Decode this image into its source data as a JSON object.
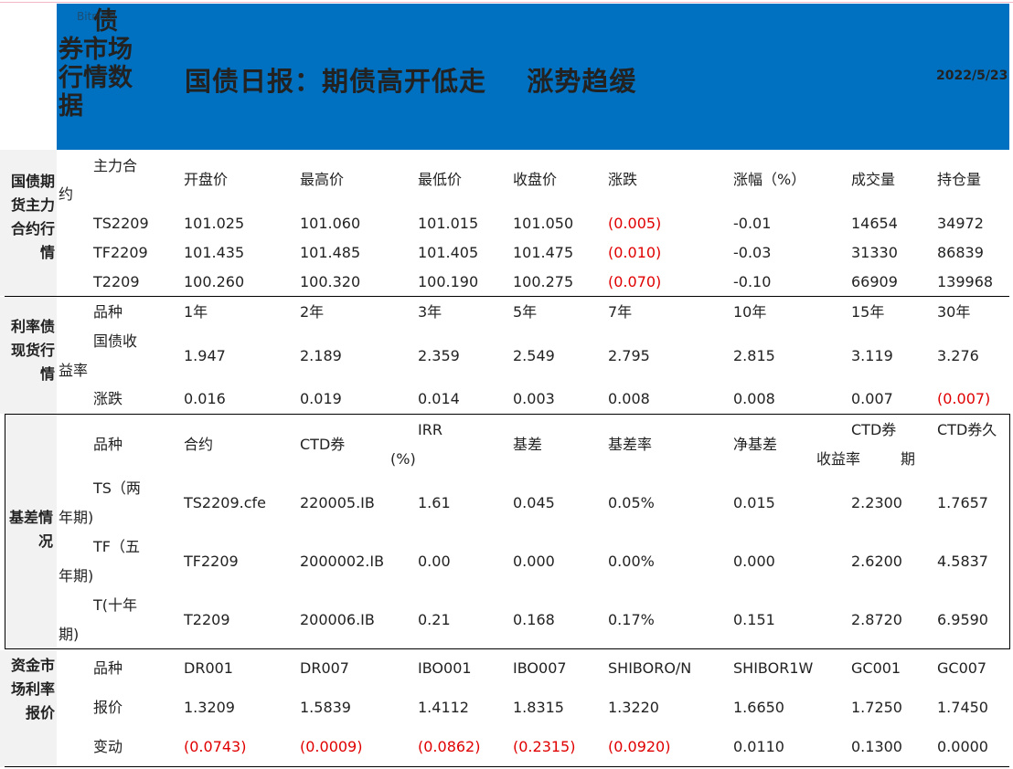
{
  "header": {
    "side_title_first": "债",
    "side_title_rest": "券市场行情数据",
    "ghost_text": "Bitmap",
    "title": "国债日报：期债高开低走    涨势趋缓",
    "date": "2022/5/23"
  },
  "futures": {
    "label": "国债期货主力合约行情",
    "headers": [
      "主力合约",
      "开盘价",
      "最高价",
      "最低价",
      "收盘价",
      "涨跌",
      "涨幅（%）",
      "成交量",
      "持仓量"
    ],
    "rows": [
      [
        "TS2209",
        "101.025",
        "101.060",
        "101.015",
        "101.050",
        "(0.005)",
        "-0.01",
        "14654",
        "34972"
      ],
      [
        "TF2209",
        "101.435",
        "101.485",
        "101.405",
        "101.475",
        "(0.010)",
        "-0.03",
        "31330",
        "86839"
      ],
      [
        "T2209",
        "100.260",
        "100.320",
        "100.190",
        "100.275",
        "(0.070)",
        "-0.10",
        "66909",
        "139968"
      ]
    ]
  },
  "spot": {
    "label": "利率债现货行情",
    "headers": [
      "品种",
      "1年",
      "2年",
      "3年",
      "5年",
      "7年",
      "10年",
      "15年",
      "30年"
    ],
    "yield_label": "国债收益率",
    "yields": [
      "1.947",
      "2.189",
      "2.359",
      "2.549",
      "2.795",
      "2.815",
      "3.119",
      "3.276"
    ],
    "change_label": "涨跌",
    "changes": [
      "0.016",
      "0.019",
      "0.014",
      "0.003",
      "0.008",
      "0.008",
      "0.007",
      "(0.007)"
    ]
  },
  "basis": {
    "label": "基差情况",
    "headers": [
      "品种",
      "合约",
      "CTD券",
      "IRR",
      "(%)",
      "基差",
      "基差率",
      "净基差",
      "CTD券",
      "收益率",
      "CTD券久",
      "期"
    ],
    "rows": [
      [
        "TS（两",
        "年期)",
        "TS2209.cfe",
        "220005.IB",
        "1.61",
        "0.045",
        "0.05%",
        "0.015",
        "2.2300",
        "1.7657"
      ],
      [
        "TF（五",
        "年期)",
        "TF2209",
        "2000002.IB",
        "0.00",
        "0.000",
        "0.00%",
        "0.000",
        "2.6200",
        "4.5837"
      ],
      [
        "T(十年",
        "期)",
        "T2209",
        "200006.IB",
        "0.21",
        "0.168",
        "0.17%",
        "0.151",
        "2.8720",
        "6.9590"
      ]
    ]
  },
  "money": {
    "label": "资金市场利率报价",
    "headers": [
      "品种",
      "DR001",
      "DR007",
      "IBO001",
      "IBO007",
      "SHIBORO/N",
      "SHIBOR1W",
      "GC001",
      "GC007"
    ],
    "quote_label": "报价",
    "quotes": [
      "1.3209",
      "1.5839",
      "1.4112",
      "1.8315",
      "1.3220",
      "1.6650",
      "1.7250",
      "1.7450"
    ],
    "change_label": "变动",
    "changes": [
      "(0.0743)",
      "(0.0009)",
      "(0.0862)",
      "(0.2315)",
      "(0.0920)",
      "0.0110",
      "0.1300",
      "0.0000"
    ]
  },
  "colors": {
    "banner": "#0070c0",
    "negative": "#e00000",
    "label_bg": "#f2f2f2"
  }
}
